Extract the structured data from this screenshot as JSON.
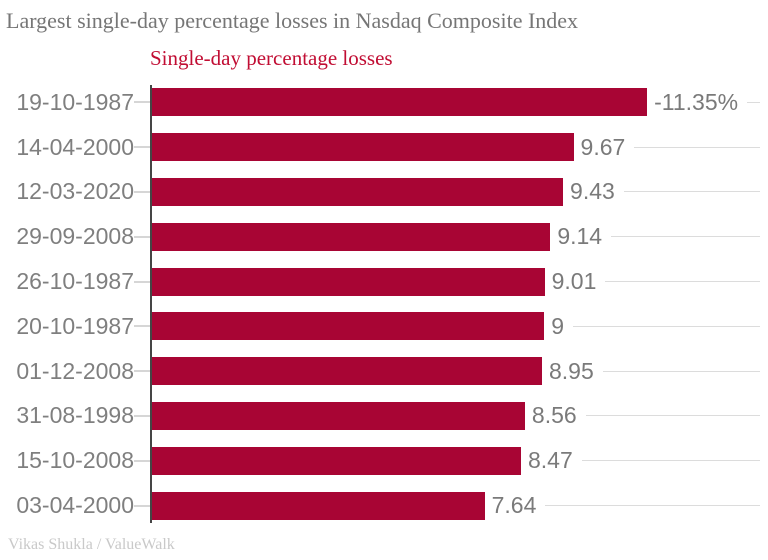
{
  "title": "Largest single-day percentage losses in Nasdaq Composite Index",
  "subtitle": "Single-day percentage losses",
  "credit": "Vikas Shukla / ValueWalk",
  "colors": {
    "bar": "#A80534",
    "subtitle_text": "#C10D33",
    "title_text": "#767676",
    "axis_label_text": "#7F7F7F",
    "value_label_text": "#7A7A7A",
    "gridline": "#DCDCDC",
    "axis_line": "#454545",
    "credit_text": "#C9C9C9"
  },
  "chart_data": {
    "type": "bar",
    "orientation": "horizontal",
    "title": "Largest single-day percentage losses in Nasdaq Composite Index",
    "subtitle": "Single-day percentage losses",
    "categories": [
      "19-10-1987",
      "14-04-2000",
      "12-03-2020",
      "29-09-2008",
      "26-10-1987",
      "20-10-1987",
      "01-12-2008",
      "31-08-1998",
      "15-10-2008",
      "03-04-2000"
    ],
    "values": [
      11.35,
      9.67,
      9.43,
      9.14,
      9.01,
      9,
      8.95,
      8.56,
      8.47,
      7.64
    ],
    "value_labels": [
      "-11.35%",
      "9.67",
      "9.43",
      "9.14",
      "9.01",
      "9",
      "8.95",
      "8.56",
      "8.47",
      "7.64"
    ],
    "xlabel": "",
    "ylabel": "",
    "xlim": [
      0,
      11.35
    ],
    "grid": true,
    "legend_position": "none"
  }
}
